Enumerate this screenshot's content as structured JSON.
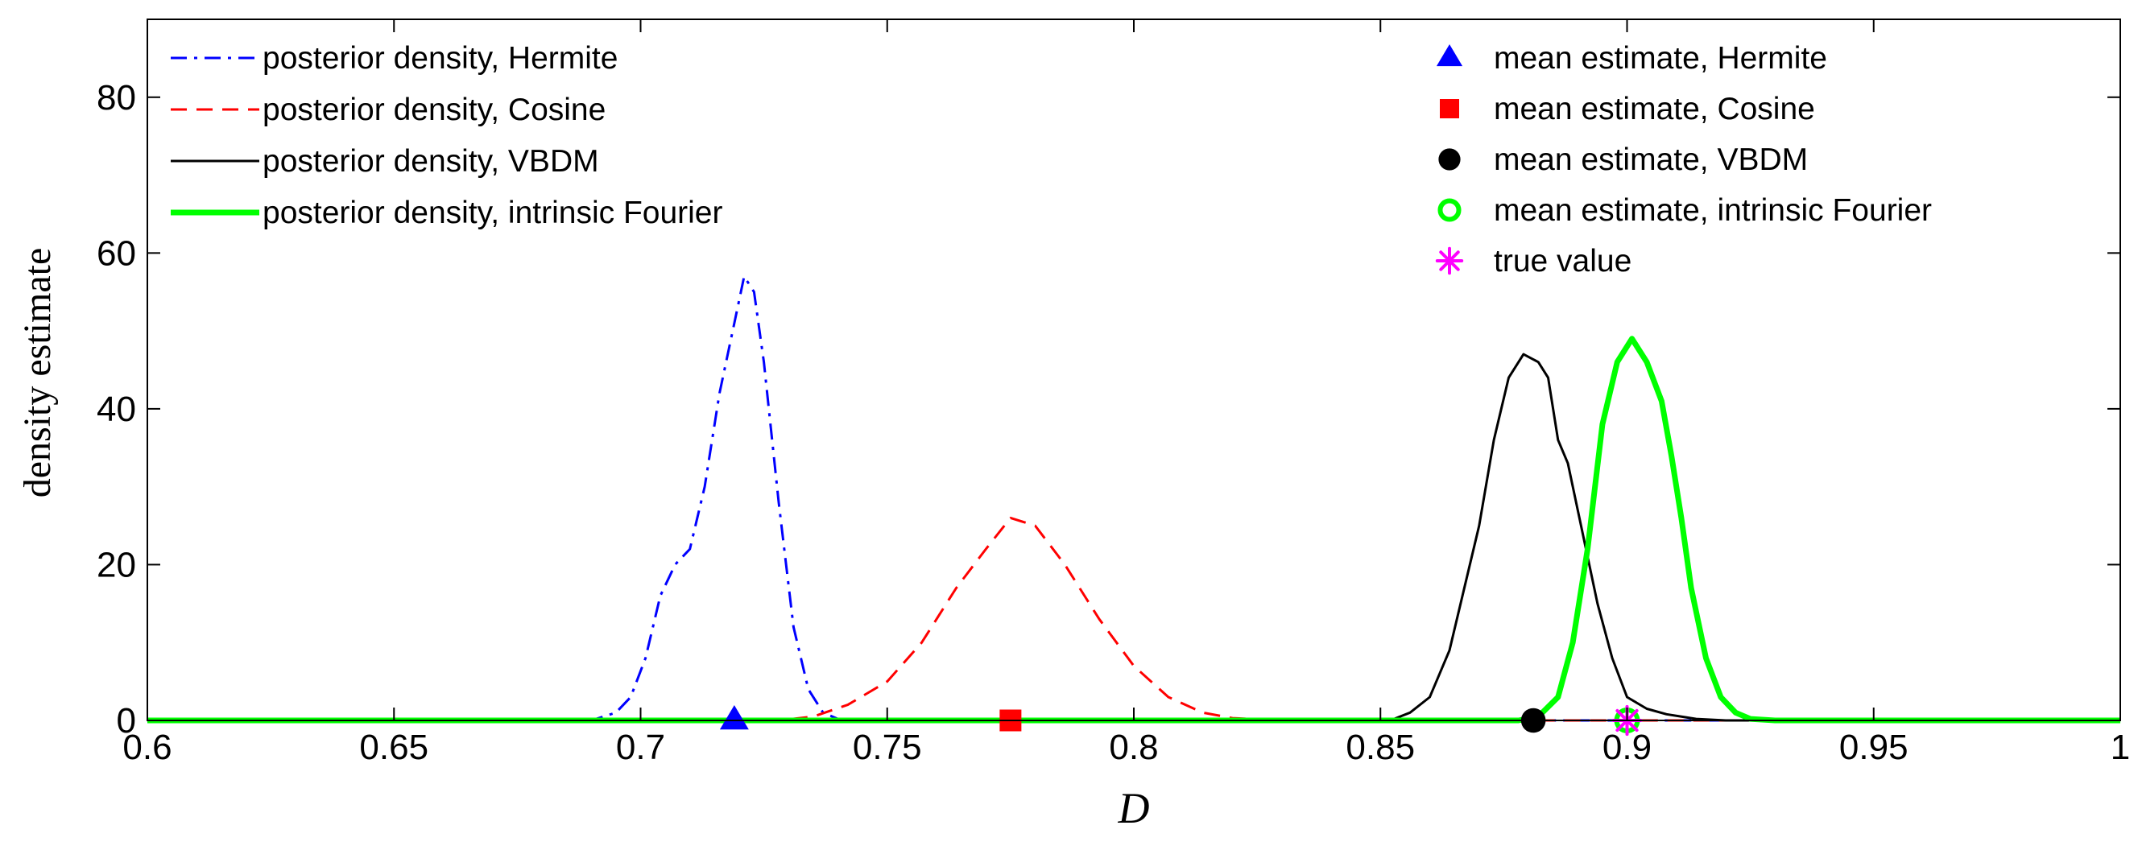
{
  "chart_data": {
    "type": "line",
    "title": "",
    "xlabel": "D",
    "ylabel": "density estimate",
    "xlim": [
      0.6,
      1.0
    ],
    "ylim": [
      0,
      90
    ],
    "xticks": [
      0.6,
      0.65,
      0.7,
      0.75,
      0.8,
      0.85,
      0.9,
      0.95,
      1.0
    ],
    "xtick_labels": [
      "0.6",
      "0.65",
      "0.7",
      "0.75",
      "0.8",
      "0.85",
      "0.9",
      "0.95",
      "1"
    ],
    "yticks": [
      0,
      20,
      40,
      60,
      80
    ],
    "ytick_labels": [
      "0",
      "20",
      "40",
      "60",
      "80"
    ],
    "grid": false,
    "legend_placement": "top-left and top-right",
    "series": [
      {
        "name": "posterior density, Hermite",
        "color": "#0000ff",
        "style": "dash-dot",
        "x": [
          0.6,
          0.69,
          0.695,
          0.698,
          0.701,
          0.704,
          0.707,
          0.71,
          0.713,
          0.716,
          0.719,
          0.721,
          0.723,
          0.725,
          0.728,
          0.731,
          0.734,
          0.737,
          0.74,
          0.745,
          1.0
        ],
        "y": [
          0,
          0,
          1,
          3,
          8,
          16,
          20,
          22,
          30,
          42,
          51,
          57,
          55,
          46,
          28,
          12,
          4,
          1,
          0.2,
          0,
          0
        ]
      },
      {
        "name": "posterior density, Cosine",
        "color": "#ff0000",
        "style": "dashed",
        "x": [
          0.6,
          0.728,
          0.735,
          0.742,
          0.75,
          0.757,
          0.764,
          0.77,
          0.775,
          0.78,
          0.786,
          0.793,
          0.8,
          0.807,
          0.814,
          0.82,
          0.83,
          1.0
        ],
        "y": [
          0,
          0,
          0.5,
          2,
          5,
          10,
          17,
          22,
          26,
          25,
          20,
          13,
          7,
          3,
          1,
          0.3,
          0,
          0
        ]
      },
      {
        "name": "posterior density, VBDM",
        "color": "#000000",
        "style": "solid",
        "x": [
          0.6,
          0.852,
          0.856,
          0.86,
          0.864,
          0.867,
          0.87,
          0.873,
          0.876,
          0.879,
          0.882,
          0.884,
          0.886,
          0.888,
          0.891,
          0.894,
          0.897,
          0.9,
          0.904,
          0.908,
          0.914,
          0.92,
          1.0
        ],
        "y": [
          0,
          0,
          1,
          3,
          9,
          17,
          25,
          36,
          44,
          47,
          46,
          44,
          36,
          33,
          24,
          15,
          8,
          3,
          1.5,
          0.8,
          0.2,
          0,
          0
        ]
      },
      {
        "name": "posterior density, intrinsic Fourier",
        "color": "#00ff00",
        "style": "solid-thick",
        "x": [
          0.6,
          0.878,
          0.882,
          0.886,
          0.889,
          0.892,
          0.895,
          0.898,
          0.901,
          0.904,
          0.907,
          0.909,
          0.911,
          0.913,
          0.916,
          0.919,
          0.922,
          0.925,
          0.93,
          1.0
        ],
        "y": [
          0,
          0,
          0.5,
          3,
          10,
          22,
          38,
          46,
          49,
          46,
          41,
          34,
          26,
          17,
          8,
          3,
          1,
          0.2,
          0,
          0
        ]
      }
    ],
    "markers": [
      {
        "name": "mean estimate, Hermite",
        "shape": "triangle",
        "color": "#0000ff",
        "fill": true,
        "x": 0.719,
        "y": 0
      },
      {
        "name": "mean estimate, Cosine",
        "shape": "square",
        "color": "#ff0000",
        "fill": true,
        "x": 0.775,
        "y": 0
      },
      {
        "name": "mean estimate, VBDM",
        "shape": "circle",
        "color": "#000000",
        "fill": true,
        "x": 0.881,
        "y": 0
      },
      {
        "name": "mean estimate, intrinsic Fourier",
        "shape": "circle",
        "color": "#00ff00",
        "fill": false,
        "x": 0.9,
        "y": 0
      },
      {
        "name": "true value",
        "shape": "asterisk",
        "color": "#ff00ff",
        "fill": false,
        "x": 0.9,
        "y": 0
      }
    ]
  }
}
